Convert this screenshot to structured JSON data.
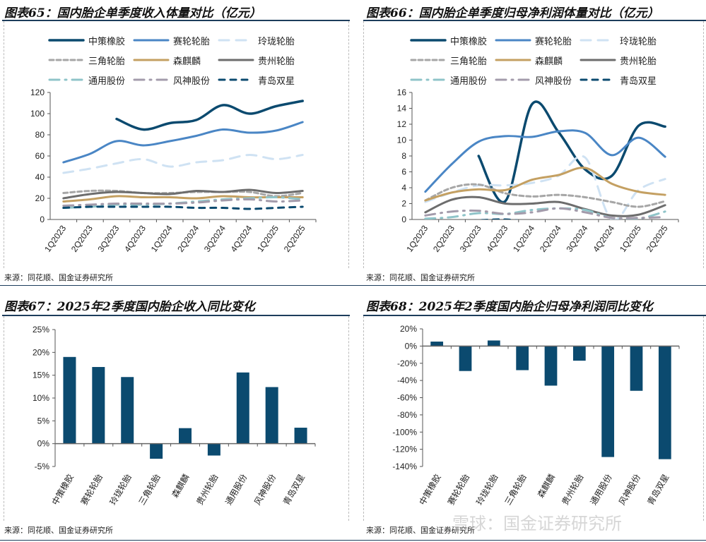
{
  "chart_data": [
    {
      "type": "line",
      "title": "图表65：国内胎企单季度收入体量对比（亿元）",
      "categories": [
        "1Q2023",
        "2Q2023",
        "3Q2023",
        "4Q2023",
        "1Q2024",
        "2Q2024",
        "3Q2024",
        "4Q2024",
        "1Q2025",
        "2Q2025"
      ],
      "ylim": [
        0,
        120
      ],
      "yticks": [
        0,
        20,
        40,
        60,
        80,
        100,
        120
      ],
      "legend": "top",
      "series": [
        {
          "name": "中策橡胶",
          "color": "#0b4a6f",
          "values": [
            null,
            null,
            95,
            85,
            91,
            94,
            108,
            100,
            107,
            112
          ]
        },
        {
          "name": "赛轮轮胎",
          "color": "#4a86c5",
          "values": [
            54,
            62,
            74,
            70,
            74,
            79,
            85,
            82,
            84,
            92
          ]
        },
        {
          "name": "玲珑轮胎",
          "color": "#cfe2f3",
          "values": [
            44,
            48,
            53,
            57,
            50,
            54,
            56,
            61,
            57,
            61
          ]
        },
        {
          "name": "三角轮胎",
          "color": "#a6a6a6",
          "values": [
            25,
            27,
            27,
            25,
            25,
            26,
            26,
            26,
            22,
            25
          ]
        },
        {
          "name": "森麒麟",
          "color": "#c4a062",
          "values": [
            17,
            19,
            22,
            21,
            21,
            20,
            22,
            21,
            21,
            21
          ]
        },
        {
          "name": "贵州轮胎",
          "color": "#6d6d6d",
          "values": [
            20,
            24,
            26,
            25,
            24,
            27,
            26,
            28,
            25,
            27
          ]
        },
        {
          "name": "通用股份",
          "color": "#8fc4c9",
          "values": [
            11,
            12,
            14,
            14,
            15,
            17,
            19,
            20,
            21,
            19
          ]
        },
        {
          "name": "风神股份",
          "color": "#a39bab",
          "values": [
            13,
            14,
            15,
            15,
            15,
            16,
            18,
            19,
            17,
            18
          ]
        },
        {
          "name": "青岛双星",
          "color": "#0b4a6f",
          "values": [
            11,
            12,
            12,
            12,
            12,
            11,
            11,
            10,
            11,
            12
          ]
        }
      ],
      "source": "来源：同花顺、国金证券研究所"
    },
    {
      "type": "line",
      "title": "图表66：国内胎企单季度归母净利润体量对比（亿元）",
      "categories": [
        "1Q2023",
        "2Q2023",
        "3Q2023",
        "4Q2023",
        "1Q2024",
        "2Q2024",
        "3Q2024",
        "4Q2024",
        "1Q2025",
        "2Q2025"
      ],
      "ylim": [
        0,
        16
      ],
      "yticks": [
        0,
        2,
        4,
        6,
        8,
        10,
        12,
        14,
        16
      ],
      "legend": "top",
      "series": [
        {
          "name": "中策橡胶",
          "color": "#0b4a6f",
          "values": [
            null,
            null,
            8,
            2.3,
            14.5,
            11,
            6.3,
            5.5,
            11.8,
            11.7
          ]
        },
        {
          "name": "赛轮轮胎",
          "color": "#4a86c5",
          "values": [
            3.5,
            7,
            9.8,
            10.5,
            10.4,
            11.1,
            10.9,
            8.1,
            10.3,
            7.9
          ]
        },
        {
          "name": "玲珑轮胎",
          "color": "#cfe2f3",
          "values": [
            2.2,
            3.4,
            4.3,
            4.3,
            4.6,
            5.5,
            7.8,
            0,
            3.7,
            5.1
          ]
        },
        {
          "name": "三角轮胎",
          "color": "#a6a6a6",
          "values": [
            2.4,
            4,
            4.4,
            3.3,
            2.9,
            3.1,
            2.8,
            2.2,
            1.6,
            2.3
          ]
        },
        {
          "name": "森麒麟",
          "color": "#c4a062",
          "values": [
            2.4,
            3.4,
            3.8,
            3.7,
            5,
            5.6,
            6.5,
            4.5,
            3.5,
            3.1
          ]
        },
        {
          "name": "贵州轮胎",
          "color": "#6d6d6d",
          "values": [
            0.9,
            2.5,
            2.8,
            2,
            2,
            2.2,
            1.3,
            0.5,
            0.6,
            1.8
          ]
        },
        {
          "name": "通用股份",
          "color": "#8fc4c9",
          "values": [
            0.1,
            0.3,
            0.8,
            0.7,
            1.2,
            1.4,
            1.2,
            0.2,
            0.1,
            1
          ]
        },
        {
          "name": "风神股份",
          "color": "#a39bab",
          "values": [
            0.5,
            1,
            1.1,
            0.7,
            0.9,
            1.4,
            0.9,
            0.2,
            0.2,
            0.3
          ]
        },
        {
          "name": "青岛双星",
          "color": "#0b4a6f",
          "values": [
            -0.5,
            -0.3,
            -0.1,
            0,
            -0.3,
            -0.5,
            -0.4,
            -0.8,
            -0.3,
            -0.2
          ]
        }
      ],
      "source": "来源：同花顺、国金证券研究所"
    },
    {
      "type": "bar",
      "title": "图表67：2025年2季度国内胎企收入同比变化",
      "categories": [
        "中策橡胶",
        "赛轮轮胎",
        "玲珑轮胎",
        "三角轮胎",
        "森麒麟",
        "贵州轮胎",
        "通用股份",
        "风神股份",
        "青岛双星"
      ],
      "values": [
        19,
        16.8,
        14.6,
        -3.3,
        3.4,
        -2.6,
        15.6,
        12.4,
        3.5
      ],
      "unit": "%",
      "ylim": [
        -5,
        25
      ],
      "yticks": [
        -5,
        0,
        5,
        10,
        15,
        20,
        25
      ],
      "color": "#0b4a6f",
      "source": "来源：同花顺、国金证券研究所"
    },
    {
      "type": "bar",
      "title": "图表68：2025年2季度国内胎企归母净利润同比变化",
      "categories": [
        "中策橡胶",
        "赛轮轮胎",
        "玲珑轮胎",
        "三角轮胎",
        "森麒麟",
        "贵州轮胎",
        "通用股份",
        "风神股份",
        "青岛双星"
      ],
      "values": [
        5.2,
        -29,
        6.5,
        -28,
        -46,
        -17,
        -129,
        -52,
        -131.5
      ],
      "unit": "%",
      "ylim": [
        -140,
        20
      ],
      "yticks": [
        -140,
        -120,
        -100,
        -80,
        -60,
        -40,
        -20,
        0,
        20
      ],
      "color": "#0b4a6f",
      "source": "来源：同花顺、国金证券研究所"
    }
  ],
  "watermark": "雪球：国金证券研究所"
}
